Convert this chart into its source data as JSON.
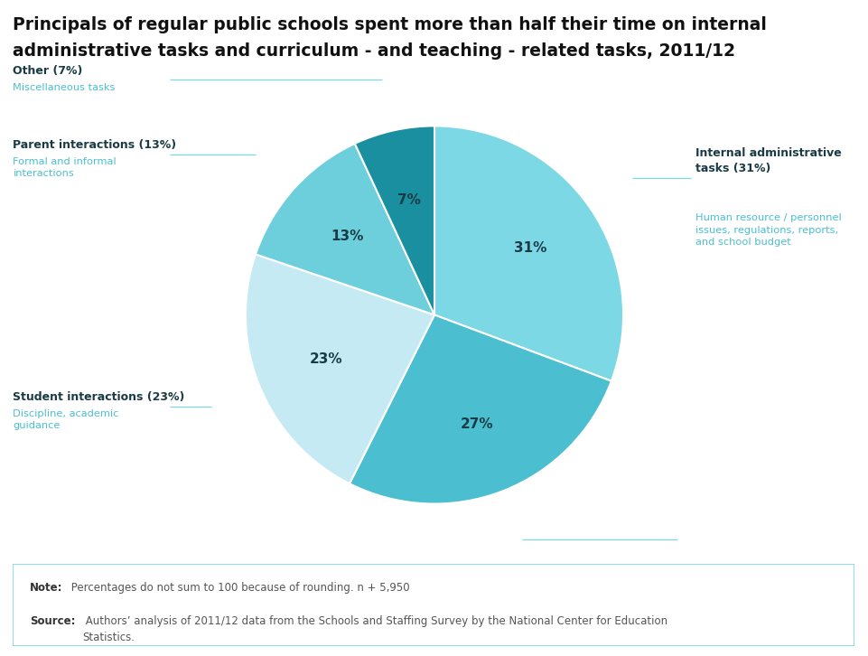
{
  "title_line1": "Principals of regular public schools spent more than half their time on internal",
  "title_line2": "administrative tasks and curriculum - and teaching - related tasks, 2011/12",
  "title_fontsize": 13.5,
  "slices": [
    {
      "label": "Internal administrative\ntasks (31%)",
      "sublabel": "Human resource / personnel\nissues, regulations, reports,\nand school budget",
      "value": 31,
      "color": "#7dd8e6",
      "pct_label": "31%"
    },
    {
      "label": "",
      "sublabel": "",
      "value": 27,
      "color": "#4bbfd0",
      "pct_label": "27%"
    },
    {
      "label": "Student interactions (23%)",
      "sublabel": "Discipline, academic\nguidance",
      "value": 23,
      "color": "#c5eaf4",
      "pct_label": "23%"
    },
    {
      "label": "Parent interactions (13%)",
      "sublabel": "Formal and informal\ninteractions",
      "value": 13,
      "color": "#6dcfdc",
      "pct_label": "13%"
    },
    {
      "label": "Other (7%)",
      "sublabel": "Miscellaneous tasks",
      "value": 7,
      "color": "#1a8fa0",
      "pct_label": "7%"
    }
  ],
  "note_bold": "Note:",
  "note_text": " Percentages do not sum to 100 because of rounding. n + 5,950",
  "source_bold": "Source:",
  "source_text": " Authors’ analysis of 2011/12 data from the Schools and Staffing Survey by the National Center for Education\nStatistics.",
  "background_color": "#ffffff",
  "label_title_color": "#1a3a45",
  "label_sub_color": "#4bbfd0",
  "leader_line_color": "#7dd8e6",
  "footnote_border_color": "#7dd8e6",
  "note_text_color": "#555555",
  "pct_text_color": "#1a3a45"
}
